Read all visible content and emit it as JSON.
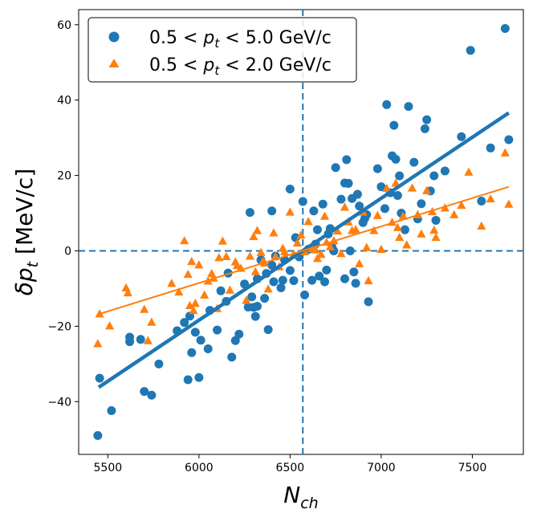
{
  "chart_data": {
    "type": "scatter",
    "xlabel": "N_ch",
    "ylabel": "δp_t   [MeV/c]",
    "xlim": [
      5340,
      7780
    ],
    "ylim": [
      -54,
      64
    ],
    "xticks": [
      5500,
      6000,
      6500,
      7000,
      7500
    ],
    "yticks": [
      -40,
      -20,
      0,
      20,
      40,
      60
    ],
    "grid": false,
    "legend_position": "top-left",
    "reference_lines": {
      "vertical_x": 6570,
      "horizontal_y": 0,
      "style": "dashed"
    },
    "series": [
      {
        "name": "0.5 < p_t < 5.0  GeV/c",
        "legend_label": "0.5 < p_t < 5.0  GeV/c",
        "marker": "circle",
        "color": "#1f77b4",
        "fit": {
          "x": [
            5450,
            7700
          ],
          "y": [
            -36.2,
            36.6
          ]
        },
        "points": [
          [
            5445,
            -49
          ],
          [
            5455,
            -33.8
          ],
          [
            5520,
            -42.4
          ],
          [
            5620,
            -24.1
          ],
          [
            5620,
            -22.9
          ],
          [
            5680,
            -23.5
          ],
          [
            5700,
            -37.3
          ],
          [
            5740,
            -38.3
          ],
          [
            5780,
            -30.0
          ],
          [
            5880,
            -21.2
          ],
          [
            5920,
            -19.0
          ],
          [
            5940,
            -34.2
          ],
          [
            5950,
            -17.3
          ],
          [
            5960,
            -27.0
          ],
          [
            5980,
            -21.6
          ],
          [
            6000,
            -33.6
          ],
          [
            6010,
            -23.7
          ],
          [
            6050,
            -26.0
          ],
          [
            6060,
            -15.8
          ],
          [
            6100,
            -21.0
          ],
          [
            6120,
            -10.6
          ],
          [
            6150,
            -13.4
          ],
          [
            6160,
            -5.9
          ],
          [
            6180,
            -28.2
          ],
          [
            6200,
            -23.8
          ],
          [
            6220,
            -22.1
          ],
          [
            6250,
            -8.8
          ],
          [
            6270,
            -14.9
          ],
          [
            6280,
            10.2
          ],
          [
            6290,
            -12.2
          ],
          [
            6300,
            -15.0
          ],
          [
            6310,
            -17.4
          ],
          [
            6320,
            -14.7
          ],
          [
            6320,
            -7.4
          ],
          [
            6340,
            -2.4
          ],
          [
            6360,
            -12.6
          ],
          [
            6370,
            -6.0
          ],
          [
            6380,
            -20.9
          ],
          [
            6400,
            10.6
          ],
          [
            6400,
            -3.8
          ],
          [
            6410,
            -8.2
          ],
          [
            6420,
            -1.4
          ],
          [
            6450,
            -9.8
          ],
          [
            6460,
            -7.8
          ],
          [
            6470,
            -2.4
          ],
          [
            6500,
            16.4
          ],
          [
            6500,
            -5.2
          ],
          [
            6520,
            -7.9
          ],
          [
            6530,
            3.5
          ],
          [
            6550,
            -1.6
          ],
          [
            6570,
            13.1
          ],
          [
            6580,
            -11.7
          ],
          [
            6600,
            0.4
          ],
          [
            6620,
            -7.8
          ],
          [
            6630,
            10.6
          ],
          [
            6640,
            1.8
          ],
          [
            6650,
            5.6
          ],
          [
            6660,
            -6.7
          ],
          [
            6680,
            12.4
          ],
          [
            6690,
            -8.2
          ],
          [
            6700,
            -5.1
          ],
          [
            6710,
            4.5
          ],
          [
            6720,
            5.9
          ],
          [
            6730,
            1.0
          ],
          [
            6740,
            0.0
          ],
          [
            6750,
            22.1
          ],
          [
            6780,
            13.7
          ],
          [
            6800,
            -7.4
          ],
          [
            6800,
            18.0
          ],
          [
            6810,
            24.2
          ],
          [
            6820,
            17.9
          ],
          [
            6830,
            0.0
          ],
          [
            6840,
            13.9
          ],
          [
            6850,
            -5.6
          ],
          [
            6860,
            -8.6
          ],
          [
            6870,
            15.0
          ],
          [
            6880,
            11.9
          ],
          [
            6900,
            7.5
          ],
          [
            6910,
            8.6
          ],
          [
            6920,
            9.6
          ],
          [
            6930,
            -13.5
          ],
          [
            6980,
            21.8
          ],
          [
            7000,
            17.0
          ],
          [
            7020,
            11.2
          ],
          [
            7030,
            38.8
          ],
          [
            7050,
            15.4
          ],
          [
            7060,
            25.2
          ],
          [
            7070,
            33.3
          ],
          [
            7080,
            24.3
          ],
          [
            7090,
            14.7
          ],
          [
            7100,
            19.9
          ],
          [
            7110,
            10.0
          ],
          [
            7130,
            5.6
          ],
          [
            7150,
            38.3
          ],
          [
            7180,
            23.5
          ],
          [
            7200,
            8.5
          ],
          [
            7220,
            12.5
          ],
          [
            7240,
            32.4
          ],
          [
            7250,
            34.8
          ],
          [
            7270,
            15.9
          ],
          [
            7290,
            19.9
          ],
          [
            7300,
            8.1
          ],
          [
            7350,
            21.2
          ],
          [
            7440,
            30.3
          ],
          [
            7490,
            53.2
          ],
          [
            7550,
            13.2
          ],
          [
            7600,
            27.3
          ],
          [
            7680,
            59
          ],
          [
            7700,
            29.5
          ]
        ]
      },
      {
        "name": "0.5 < p_t < 2.0  GeV/c",
        "legend_label": "0.5 < p_t < 2.0  GeV/c",
        "marker": "triangle",
        "color": "#ff7f0e",
        "fit": {
          "x": [
            5450,
            7700
          ],
          "y": [
            -16.8,
            17.0
          ]
        },
        "points": [
          [
            5445,
            -24.7
          ],
          [
            5455,
            -16.8
          ],
          [
            5510,
            -20.0
          ],
          [
            5600,
            -9.9
          ],
          [
            5610,
            -11.2
          ],
          [
            5700,
            -15.6
          ],
          [
            5720,
            -23.9
          ],
          [
            5740,
            -19.0
          ],
          [
            5850,
            -8.7
          ],
          [
            5890,
            -11.0
          ],
          [
            5920,
            2.6
          ],
          [
            5940,
            -6.3
          ],
          [
            5950,
            -14.6
          ],
          [
            5960,
            -2.9
          ],
          [
            5970,
            -15.9
          ],
          [
            5980,
            -14.0
          ],
          [
            6000,
            -3.8
          ],
          [
            6030,
            -11.8
          ],
          [
            6050,
            -8.1
          ],
          [
            6070,
            -6.1
          ],
          [
            6080,
            -7.3
          ],
          [
            6100,
            -15.4
          ],
          [
            6110,
            -1.9
          ],
          [
            6130,
            2.5
          ],
          [
            6150,
            -1.6
          ],
          [
            6170,
            -10.5
          ],
          [
            6200,
            -3.0
          ],
          [
            6210,
            -4.0
          ],
          [
            6230,
            -4.7
          ],
          [
            6260,
            -13.2
          ],
          [
            6280,
            -1.5
          ],
          [
            6300,
            3.7
          ],
          [
            6310,
            -5.6
          ],
          [
            6320,
            5.3
          ],
          [
            6340,
            -0.5
          ],
          [
            6350,
            -2.9
          ],
          [
            6360,
            -3.3
          ],
          [
            6380,
            -10.2
          ],
          [
            6410,
            4.7
          ],
          [
            6420,
            -1.6
          ],
          [
            6440,
            -4.3
          ],
          [
            6460,
            0.6
          ],
          [
            6470,
            -0.3
          ],
          [
            6500,
            10.2
          ],
          [
            6520,
            -0.9
          ],
          [
            6540,
            2.0
          ],
          [
            6560,
            4.1
          ],
          [
            6580,
            -0.3
          ],
          [
            6600,
            7.7
          ],
          [
            6620,
            0.5
          ],
          [
            6640,
            0.2
          ],
          [
            6650,
            -2.1
          ],
          [
            6670,
            -1.0
          ],
          [
            6690,
            9.1
          ],
          [
            6700,
            2.2
          ],
          [
            6720,
            1.0
          ],
          [
            6740,
            2.6
          ],
          [
            6760,
            5.2
          ],
          [
            6780,
            -0.8
          ],
          [
            6800,
            11.5
          ],
          [
            6820,
            7.6
          ],
          [
            6840,
            5.3
          ],
          [
            6860,
            5.6
          ],
          [
            6880,
            -3.5
          ],
          [
            6900,
            10.2
          ],
          [
            6920,
            0.8
          ],
          [
            6930,
            -8.0
          ],
          [
            6960,
            5.3
          ],
          [
            6980,
            9.3
          ],
          [
            7000,
            0.3
          ],
          [
            7030,
            16.5
          ],
          [
            7060,
            7.5
          ],
          [
            7080,
            17.9
          ],
          [
            7090,
            6.1
          ],
          [
            7100,
            3.5
          ],
          [
            7120,
            9.1
          ],
          [
            7140,
            1.5
          ],
          [
            7170,
            16.6
          ],
          [
            7200,
            9.5
          ],
          [
            7220,
            4.4
          ],
          [
            7250,
            15.9
          ],
          [
            7280,
            10.3
          ],
          [
            7290,
            5.4
          ],
          [
            7300,
            3.5
          ],
          [
            7350,
            11.3
          ],
          [
            7400,
            9.5
          ],
          [
            7440,
            12.0
          ],
          [
            7480,
            20.8
          ],
          [
            7550,
            6.5
          ],
          [
            7600,
            13.7
          ],
          [
            7680,
            25.9
          ],
          [
            7700,
            12.3
          ]
        ]
      }
    ]
  }
}
